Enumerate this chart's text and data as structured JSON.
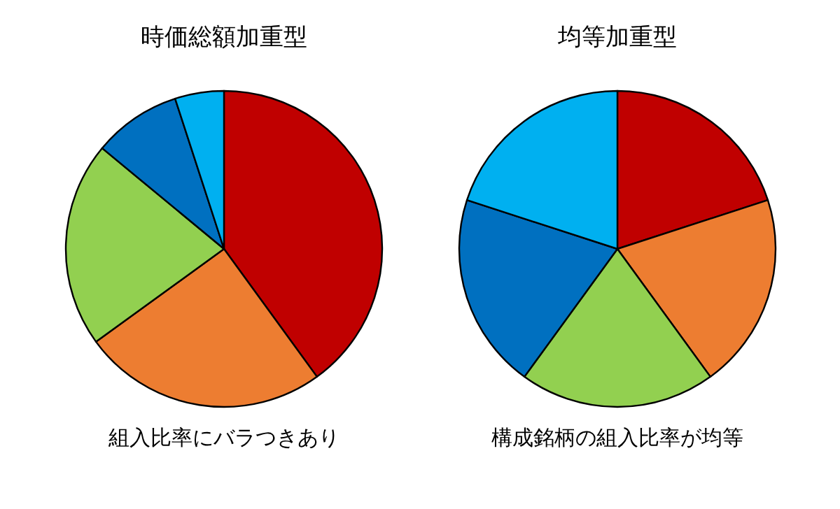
{
  "chart_data": [
    {
      "type": "pie",
      "title": "時価総額加重型",
      "categories": [
        null,
        null,
        null,
        null,
        null
      ],
      "values": [
        40,
        25,
        21,
        9,
        5
      ],
      "colors": [
        "#c00000",
        "#ed7d31",
        "#92d050",
        "#0070c0",
        "#00b0f0"
      ],
      "annotations": [
        "組入比率にバラつきあり"
      ]
    },
    {
      "type": "pie",
      "title": "均等加重型",
      "categories": [
        null,
        null,
        null,
        null,
        null
      ],
      "values": [
        20,
        20,
        20,
        20,
        20
      ],
      "colors": [
        "#c00000",
        "#ed7d31",
        "#92d050",
        "#0070c0",
        "#00b0f0"
      ],
      "annotations": [
        "構成銘柄の組入比率が均等"
      ]
    }
  ]
}
